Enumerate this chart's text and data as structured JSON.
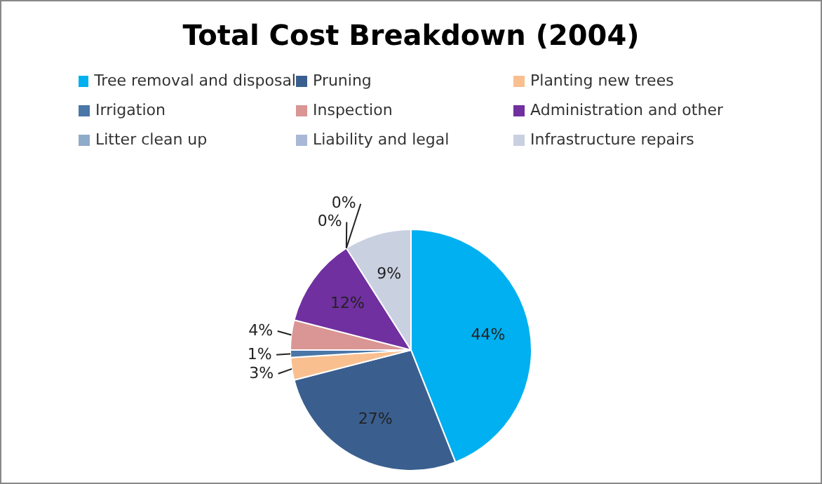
{
  "chart_data": {
    "type": "pie",
    "title": "Total Cost Breakdown (2004)",
    "categories": [
      "Tree removal and disposal",
      "Pruning",
      "Planting new trees",
      "Irrigation",
      "Inspection",
      "Administration and other",
      "Litter clean up",
      "Liability and legal",
      "Infrastructure repairs"
    ],
    "values": [
      44,
      27,
      3,
      1,
      4,
      12,
      0,
      0,
      9
    ],
    "value_labels": [
      "44%",
      "27%",
      "3%",
      "1%",
      "4%",
      "12%",
      "0%",
      "0%",
      "9%"
    ],
    "colors": [
      "#00b0f0",
      "#3a5f8f",
      "#f9bf8f",
      "#4a76a8",
      "#d99694",
      "#7030a0",
      "#8eabc9",
      "#aab8d8",
      "#c9d0e0"
    ],
    "legend": "top"
  }
}
